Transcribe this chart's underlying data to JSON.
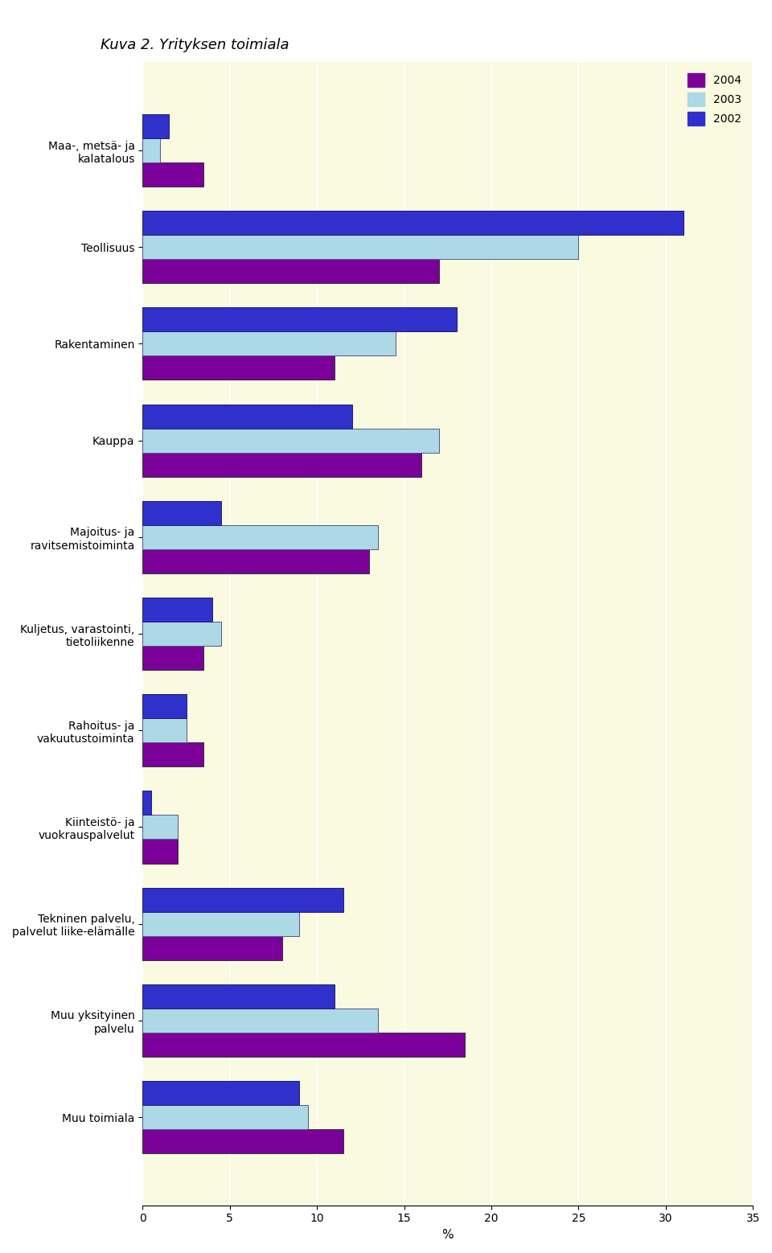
{
  "title": "Kuva 2. Yrityksen toimiala",
  "categories": [
    "Maa-, metsä- ja\nkalatalous",
    "Teollisuus",
    "Rakentaminen",
    "Kauppa",
    "Majoitus- ja\nravitsemistoiminta",
    "Kuljetus, varastointi,\ntietoliikenne",
    "Rahoitus- ja\nvakuutustoiminta",
    "Kiinteistö- ja\nvuokrauspalvelut",
    "Tekninen palvelu,\npalvelut liike-elämälle",
    "Muu yksityinen\npalvelu",
    "Muu toimiala"
  ],
  "values_2004": [
    3.5,
    17.0,
    11.0,
    16.0,
    13.0,
    3.5,
    3.5,
    2.0,
    8.0,
    18.5,
    11.5
  ],
  "values_2003": [
    1.0,
    25.0,
    14.5,
    17.0,
    13.5,
    4.5,
    2.5,
    2.0,
    9.0,
    13.5,
    9.5
  ],
  "values_2002": [
    1.5,
    31.0,
    18.0,
    12.0,
    4.5,
    4.0,
    2.5,
    0.5,
    11.5,
    11.0,
    9.0
  ],
  "color_2004": "#7B0099",
  "color_2003": "#ADD8E6",
  "color_2002": "#3030CC",
  "xlabel": "%",
  "xlim": [
    0,
    35
  ],
  "xticks": [
    0,
    5,
    10,
    15,
    20,
    25,
    30,
    35
  ],
  "background_color": "#FAFAE0",
  "legend_labels": [
    "2004",
    "2003",
    "2002"
  ]
}
